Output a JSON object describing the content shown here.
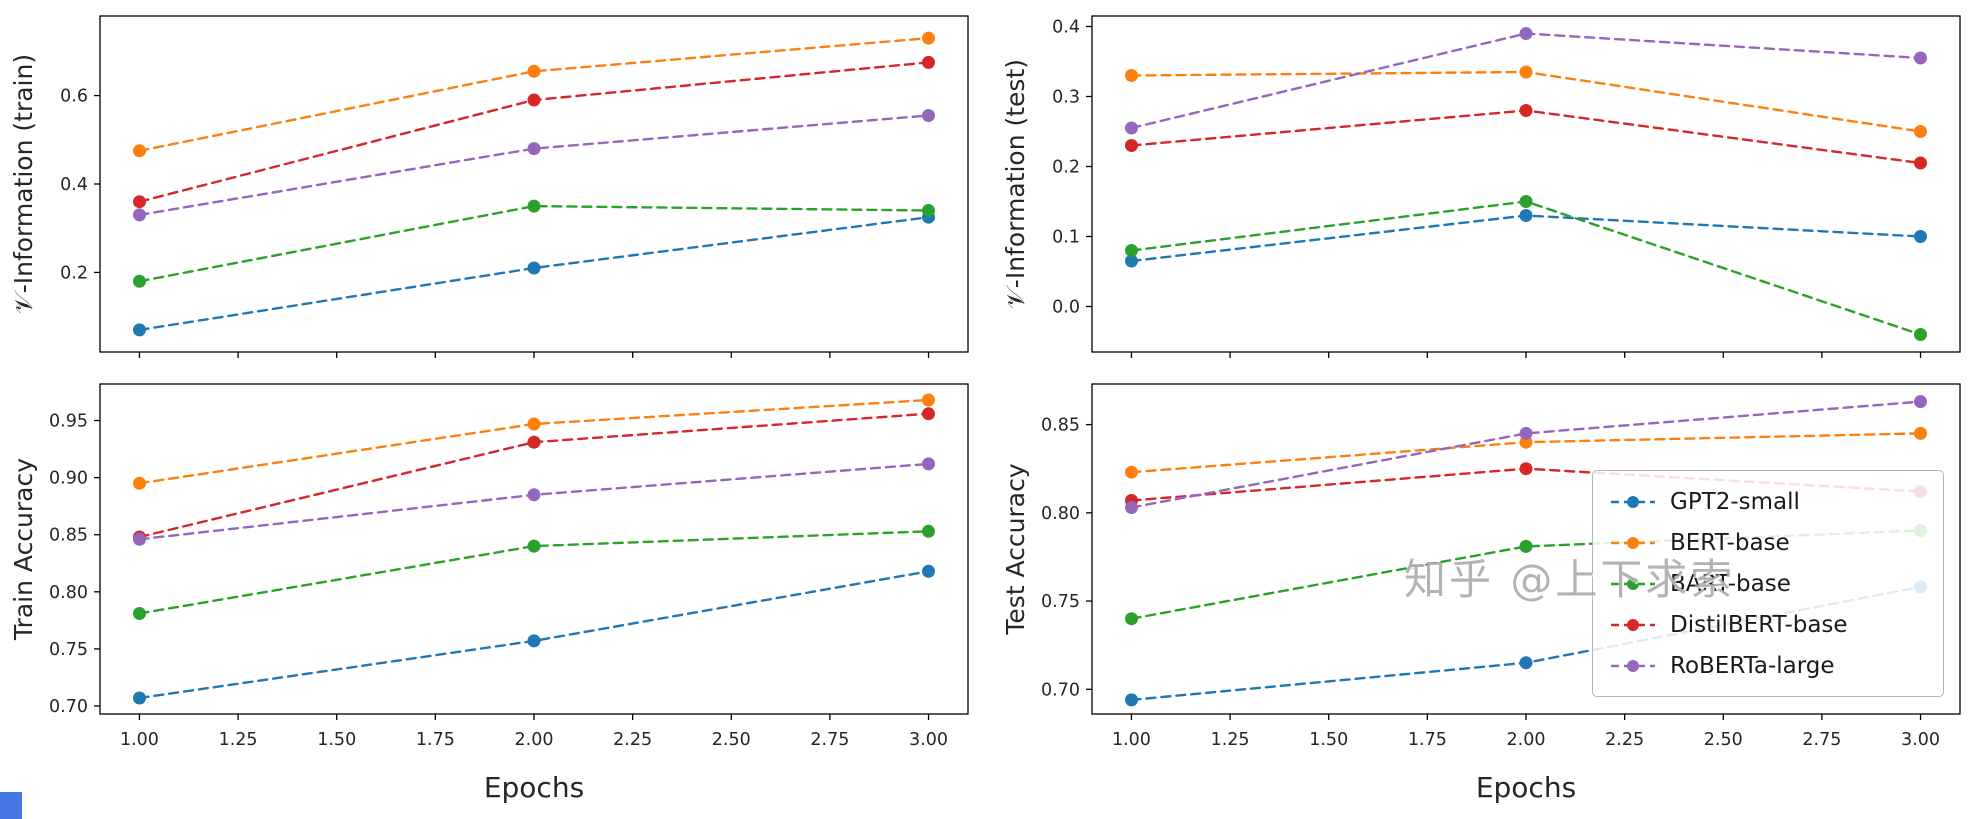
{
  "watermark": {
    "text": "知乎 @上下求索"
  },
  "legend": {
    "position": "center-right of Test Accuracy subplot",
    "items": [
      "GPT2-small",
      "BERT-base",
      "BART-base",
      "DistilBERT-base",
      "RoBERTa-large"
    ]
  },
  "colors": {
    "GPT2-small": "#1f77b4",
    "BERT-base": "#ff7f0e",
    "BART-base": "#2ca02c",
    "DistilBERT-base": "#d62728",
    "RoBERTa-large": "#9467bd",
    "axis": "#000000",
    "tick_label": "#262626"
  },
  "chart_data": [
    {
      "type": "line",
      "style": "dashed-with-markers",
      "ylabel": "𝒱-Information (train)",
      "xlabel": "",
      "x": [
        1,
        2,
        3
      ],
      "xlim": [
        0.9,
        3.1
      ],
      "ylim": [
        0.02,
        0.78
      ],
      "xtick_values": [
        1.0,
        1.25,
        1.5,
        1.75,
        2.0,
        2.25,
        2.5,
        2.75,
        3.0
      ],
      "xtick_labels": [
        "1.00",
        "1.25",
        "1.50",
        "1.75",
        "2.00",
        "2.25",
        "2.50",
        "2.75",
        "3.00"
      ],
      "show_xtick_labels": false,
      "ytick_values": [
        0.2,
        0.4,
        0.6
      ],
      "ytick_labels": [
        "0.2",
        "0.4",
        "0.6"
      ],
      "series": [
        {
          "name": "GPT2-small",
          "color": "#1f77b4",
          "values": [
            0.07,
            0.21,
            0.325
          ]
        },
        {
          "name": "BERT-base",
          "color": "#ff7f0e",
          "values": [
            0.475,
            0.655,
            0.73
          ]
        },
        {
          "name": "BART-base",
          "color": "#2ca02c",
          "values": [
            0.18,
            0.35,
            0.34
          ]
        },
        {
          "name": "DistilBERT-base",
          "color": "#d62728",
          "values": [
            0.36,
            0.59,
            0.675
          ]
        },
        {
          "name": "RoBERTa-large",
          "color": "#9467bd",
          "values": [
            0.33,
            0.48,
            0.555
          ]
        }
      ]
    },
    {
      "type": "line",
      "style": "dashed-with-markers",
      "ylabel": "𝒱-Information (test)",
      "xlabel": "",
      "x": [
        1,
        2,
        3
      ],
      "xlim": [
        0.9,
        3.1
      ],
      "ylim": [
        -0.065,
        0.415
      ],
      "xtick_values": [
        1.0,
        1.25,
        1.5,
        1.75,
        2.0,
        2.25,
        2.5,
        2.75,
        3.0
      ],
      "xtick_labels": [
        "1.00",
        "1.25",
        "1.50",
        "1.75",
        "2.00",
        "2.25",
        "2.50",
        "2.75",
        "3.00"
      ],
      "show_xtick_labels": false,
      "ytick_values": [
        0.0,
        0.1,
        0.2,
        0.3,
        0.4
      ],
      "ytick_labels": [
        "0.0",
        "0.1",
        "0.2",
        "0.3",
        "0.4"
      ],
      "series": [
        {
          "name": "GPT2-small",
          "color": "#1f77b4",
          "values": [
            0.065,
            0.13,
            0.1
          ]
        },
        {
          "name": "BERT-base",
          "color": "#ff7f0e",
          "values": [
            0.33,
            0.335,
            0.25
          ]
        },
        {
          "name": "BART-base",
          "color": "#2ca02c",
          "values": [
            0.08,
            0.15,
            -0.04
          ]
        },
        {
          "name": "DistilBERT-base",
          "color": "#d62728",
          "values": [
            0.23,
            0.28,
            0.205
          ]
        },
        {
          "name": "RoBERTa-large",
          "color": "#9467bd",
          "values": [
            0.255,
            0.39,
            0.355
          ]
        }
      ]
    },
    {
      "type": "line",
      "style": "dashed-with-markers",
      "ylabel": "Train Accuracy",
      "xlabel": "Epochs",
      "x": [
        1,
        2,
        3
      ],
      "xlim": [
        0.9,
        3.1
      ],
      "ylim": [
        0.693,
        0.982
      ],
      "xtick_values": [
        1.0,
        1.25,
        1.5,
        1.75,
        2.0,
        2.25,
        2.5,
        2.75,
        3.0
      ],
      "xtick_labels": [
        "1.00",
        "1.25",
        "1.50",
        "1.75",
        "2.00",
        "2.25",
        "2.50",
        "2.75",
        "3.00"
      ],
      "show_xtick_labels": true,
      "ytick_values": [
        0.7,
        0.75,
        0.8,
        0.85,
        0.9,
        0.95
      ],
      "ytick_labels": [
        "0.70",
        "0.75",
        "0.80",
        "0.85",
        "0.90",
        "0.95"
      ],
      "series": [
        {
          "name": "GPT2-small",
          "color": "#1f77b4",
          "values": [
            0.707,
            0.757,
            0.818
          ]
        },
        {
          "name": "BERT-base",
          "color": "#ff7f0e",
          "values": [
            0.895,
            0.947,
            0.968
          ]
        },
        {
          "name": "BART-base",
          "color": "#2ca02c",
          "values": [
            0.781,
            0.84,
            0.853
          ]
        },
        {
          "name": "DistilBERT-base",
          "color": "#d62728",
          "values": [
            0.848,
            0.931,
            0.956
          ]
        },
        {
          "name": "RoBERTa-large",
          "color": "#9467bd",
          "values": [
            0.846,
            0.885,
            0.912
          ]
        }
      ]
    },
    {
      "type": "line",
      "style": "dashed-with-markers",
      "ylabel": "Test Accuracy",
      "xlabel": "Epochs",
      "legend": true,
      "x": [
        1,
        2,
        3
      ],
      "xlim": [
        0.9,
        3.1
      ],
      "ylim": [
        0.686,
        0.873
      ],
      "xtick_values": [
        1.0,
        1.25,
        1.5,
        1.75,
        2.0,
        2.25,
        2.5,
        2.75,
        3.0
      ],
      "xtick_labels": [
        "1.00",
        "1.25",
        "1.50",
        "1.75",
        "2.00",
        "2.25",
        "2.50",
        "2.75",
        "3.00"
      ],
      "show_xtick_labels": true,
      "ytick_values": [
        0.7,
        0.75,
        0.8,
        0.85
      ],
      "ytick_labels": [
        "0.70",
        "0.75",
        "0.80",
        "0.85"
      ],
      "series": [
        {
          "name": "GPT2-small",
          "color": "#1f77b4",
          "values": [
            0.694,
            0.715,
            0.758
          ]
        },
        {
          "name": "BERT-base",
          "color": "#ff7f0e",
          "values": [
            0.823,
            0.84,
            0.845
          ]
        },
        {
          "name": "BART-base",
          "color": "#2ca02c",
          "values": [
            0.74,
            0.781,
            0.79
          ]
        },
        {
          "name": "DistilBERT-base",
          "color": "#d62728",
          "values": [
            0.807,
            0.825,
            0.812
          ]
        },
        {
          "name": "RoBERTa-large",
          "color": "#9467bd",
          "values": [
            0.803,
            0.845,
            0.863
          ]
        }
      ]
    }
  ]
}
